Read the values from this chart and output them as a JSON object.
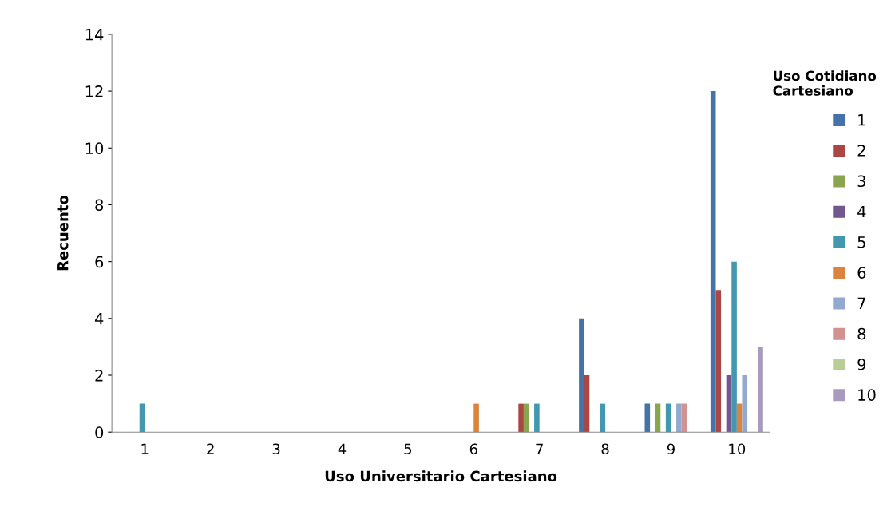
{
  "chart_data": {
    "type": "bar",
    "xlabel": "Uso Universitario Cartesiano",
    "ylabel": "Recuento",
    "legend_title": "Uso Cotidiano\nCartesiano",
    "categories": [
      "1",
      "2",
      "3",
      "4",
      "5",
      "6",
      "7",
      "8",
      "9",
      "10"
    ],
    "ylim": [
      0,
      14
    ],
    "yticks": [
      0,
      2,
      4,
      6,
      8,
      10,
      12,
      14
    ],
    "grid": false,
    "legend": "right",
    "series": [
      {
        "name": "1",
        "color": "#4572a7",
        "values": [
          null,
          null,
          null,
          null,
          null,
          null,
          null,
          4,
          1,
          12
        ]
      },
      {
        "name": "2",
        "color": "#aa4643",
        "values": [
          null,
          null,
          null,
          null,
          null,
          null,
          1,
          2,
          null,
          5
        ]
      },
      {
        "name": "3",
        "color": "#89a54e",
        "values": [
          null,
          null,
          null,
          null,
          null,
          null,
          1,
          null,
          1,
          null
        ]
      },
      {
        "name": "4",
        "color": "#71588f",
        "values": [
          null,
          null,
          null,
          null,
          null,
          null,
          null,
          null,
          null,
          2
        ]
      },
      {
        "name": "5",
        "color": "#4198af",
        "values": [
          1,
          null,
          null,
          null,
          null,
          null,
          1,
          1,
          1,
          6
        ]
      },
      {
        "name": "6",
        "color": "#db843d",
        "values": [
          null,
          null,
          null,
          null,
          null,
          1,
          null,
          null,
          null,
          1
        ]
      },
      {
        "name": "7",
        "color": "#93a9cf",
        "values": [
          null,
          null,
          null,
          null,
          null,
          null,
          null,
          null,
          1,
          2
        ]
      },
      {
        "name": "8",
        "color": "#d19392",
        "values": [
          null,
          null,
          null,
          null,
          null,
          null,
          null,
          null,
          1,
          null
        ]
      },
      {
        "name": "9",
        "color": "#b9cd96",
        "values": [
          null,
          null,
          null,
          null,
          null,
          null,
          null,
          null,
          null,
          null
        ]
      },
      {
        "name": "10",
        "color": "#a99bbd",
        "values": [
          null,
          null,
          null,
          null,
          null,
          null,
          null,
          null,
          null,
          3
        ]
      }
    ]
  }
}
